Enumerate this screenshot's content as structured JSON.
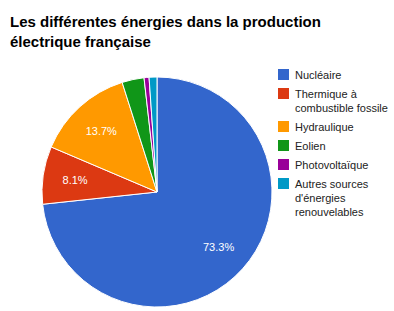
{
  "chart_data": {
    "type": "pie",
    "title": "Les différentes énergies dans la production électrique française",
    "categories": [
      "Nucléaire",
      "Thermique à combustible fossile",
      "Hydraulique",
      "Eolien",
      "Photovoltaïque",
      "Autres sources d'énergies renouvelables"
    ],
    "values": [
      73.3,
      8.1,
      13.7,
      3.1,
      0.7,
      1.1
    ],
    "value_labels": [
      "73.3%",
      "8.1%",
      "13.7%",
      null,
      null,
      null
    ],
    "colors": [
      "#3366cc",
      "#dc3912",
      "#ff9900",
      "#109618",
      "#990099",
      "#0099c6"
    ],
    "legend": "right"
  }
}
